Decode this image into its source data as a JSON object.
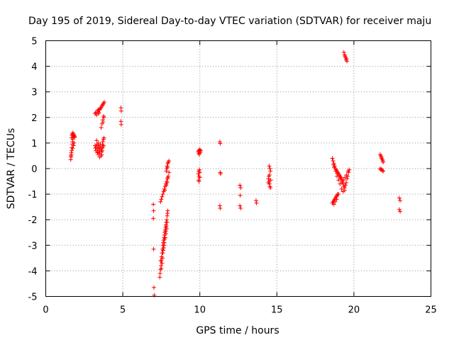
{
  "chart_data": {
    "type": "scatter",
    "title": "Day 195 of 2019, Sidereal Day-to-day VTEC variation (SDTVAR) for receiver maju",
    "xlabel": "GPS time / hours",
    "ylabel": "SDTVAR / TECUs",
    "xlim": [
      0,
      25
    ],
    "ylim": [
      -5,
      5
    ],
    "xticks": [
      "0",
      "5",
      "10",
      "15",
      "20",
      "25"
    ],
    "yticks": [
      "-5",
      "-4",
      "-3",
      "-2",
      "-1",
      "0",
      "1",
      "2",
      "3",
      "4",
      "5"
    ],
    "grid": true,
    "marker": "plus",
    "color": "#ff0000",
    "series": [
      {
        "name": "SDTVAR",
        "points": [
          [
            1.62,
            0.35
          ],
          [
            1.64,
            0.5
          ],
          [
            1.66,
            0.62
          ],
          [
            1.68,
            0.7
          ],
          [
            1.7,
            0.82
          ],
          [
            1.72,
            0.95
          ],
          [
            1.74,
            1.05
          ],
          [
            1.76,
            1.15
          ],
          [
            1.78,
            1.25
          ],
          [
            1.8,
            1.35
          ],
          [
            1.82,
            1.3
          ],
          [
            1.84,
            1.28
          ],
          [
            1.86,
            1.22
          ],
          [
            1.7,
            1.3
          ],
          [
            1.72,
            1.35
          ],
          [
            1.76,
            1.4
          ],
          [
            1.66,
            0.55
          ],
          [
            1.74,
            0.78
          ],
          [
            1.8,
            0.9
          ],
          [
            1.84,
            1.0
          ],
          [
            1.68,
            1.2
          ],
          [
            1.78,
            1.33
          ],
          [
            1.88,
            1.25
          ],
          [
            1.64,
            0.45
          ],
          [
            3.2,
            2.15
          ],
          [
            3.25,
            2.2
          ],
          [
            3.3,
            2.1
          ],
          [
            3.35,
            2.25
          ],
          [
            3.4,
            2.3
          ],
          [
            3.45,
            2.2
          ],
          [
            3.5,
            2.3
          ],
          [
            3.55,
            2.35
          ],
          [
            3.6,
            2.4
          ],
          [
            3.65,
            2.45
          ],
          [
            3.7,
            2.5
          ],
          [
            3.75,
            2.55
          ],
          [
            3.8,
            2.6
          ],
          [
            3.42,
            2.15
          ],
          [
            3.48,
            2.32
          ],
          [
            3.2,
            0.9
          ],
          [
            3.22,
            0.8
          ],
          [
            3.25,
            0.7
          ],
          [
            3.28,
            0.85
          ],
          [
            3.3,
            1.1
          ],
          [
            3.32,
            0.95
          ],
          [
            3.35,
            0.75
          ],
          [
            3.38,
            0.65
          ],
          [
            3.4,
            0.9
          ],
          [
            3.42,
            1.0
          ],
          [
            3.45,
            0.8
          ],
          [
            3.48,
            0.7
          ],
          [
            3.5,
            0.6
          ],
          [
            3.52,
            0.85
          ],
          [
            3.55,
            0.95
          ],
          [
            3.58,
            0.75
          ],
          [
            3.6,
            0.5
          ],
          [
            3.62,
            0.65
          ],
          [
            3.65,
            0.8
          ],
          [
            3.68,
            0.95
          ],
          [
            3.7,
            1.05
          ],
          [
            3.72,
            0.85
          ],
          [
            3.75,
            1.15
          ],
          [
            3.78,
            1.2
          ],
          [
            3.62,
            0.55
          ],
          [
            3.66,
            0.7
          ],
          [
            3.74,
            0.9
          ],
          [
            3.4,
            0.55
          ],
          [
            3.5,
            0.45
          ],
          [
            3.36,
            0.62
          ],
          [
            3.6,
            1.6
          ],
          [
            3.65,
            1.75
          ],
          [
            3.7,
            1.9
          ],
          [
            3.75,
            2.05
          ],
          [
            3.72,
            1.82
          ],
          [
            3.78,
            2.0
          ],
          [
            4.88,
            2.38
          ],
          [
            4.9,
            2.25
          ],
          [
            4.88,
            1.85
          ],
          [
            4.9,
            1.72
          ],
          [
            6.98,
            -1.4
          ],
          [
            7.0,
            -1.65
          ],
          [
            6.98,
            -1.95
          ],
          [
            7.0,
            -3.15
          ],
          [
            7.02,
            -4.65
          ],
          [
            7.04,
            -4.95
          ],
          [
            7.4,
            -4.25
          ],
          [
            7.42,
            -4.1
          ],
          [
            7.45,
            -3.95
          ],
          [
            7.48,
            -3.8
          ],
          [
            7.5,
            -3.6
          ],
          [
            7.52,
            -3.45
          ],
          [
            7.55,
            -3.3
          ],
          [
            7.58,
            -3.15
          ],
          [
            7.6,
            -3.0
          ],
          [
            7.62,
            -2.9
          ],
          [
            7.65,
            -2.8
          ],
          [
            7.68,
            -2.7
          ],
          [
            7.7,
            -2.6
          ],
          [
            7.72,
            -2.5
          ],
          [
            7.75,
            -2.4
          ],
          [
            7.78,
            -2.3
          ],
          [
            7.8,
            -2.2
          ],
          [
            7.82,
            -2.1
          ],
          [
            7.85,
            -2.0
          ],
          [
            7.88,
            -1.85
          ],
          [
            7.9,
            -1.75
          ],
          [
            7.92,
            -1.65
          ],
          [
            7.45,
            -3.6
          ],
          [
            7.55,
            -3.7
          ],
          [
            7.6,
            -3.3
          ],
          [
            7.65,
            -3.1
          ],
          [
            7.7,
            -2.9
          ],
          [
            7.75,
            -2.7
          ],
          [
            7.8,
            -2.55
          ],
          [
            7.85,
            -2.35
          ],
          [
            7.5,
            -3.9
          ],
          [
            7.58,
            -3.5
          ],
          [
            7.62,
            -3.2
          ],
          [
            7.68,
            -3.0
          ],
          [
            7.72,
            -2.75
          ],
          [
            7.78,
            -2.45
          ],
          [
            7.82,
            -2.25
          ],
          [
            7.88,
            -2.1
          ],
          [
            7.45,
            -1.3
          ],
          [
            7.5,
            -1.2
          ],
          [
            7.55,
            -1.1
          ],
          [
            7.6,
            -1.0
          ],
          [
            7.65,
            -0.9
          ],
          [
            7.7,
            -0.8
          ],
          [
            7.75,
            -0.7
          ],
          [
            7.8,
            -0.6
          ],
          [
            7.85,
            -0.5
          ],
          [
            7.9,
            -0.4
          ],
          [
            7.95,
            -0.3
          ],
          [
            8.0,
            -0.15
          ],
          [
            7.72,
            -0.85
          ],
          [
            7.82,
            -0.65
          ],
          [
            7.88,
            -0.55
          ],
          [
            7.92,
            -0.35
          ],
          [
            7.85,
            0.0
          ],
          [
            7.88,
            0.1
          ],
          [
            7.92,
            0.2
          ],
          [
            7.95,
            0.25
          ],
          [
            8.0,
            0.3
          ],
          [
            7.82,
            -0.1
          ],
          [
            7.9,
            0.05
          ],
          [
            9.9,
            0.65
          ],
          [
            9.92,
            0.7
          ],
          [
            9.95,
            0.6
          ],
          [
            9.98,
            0.72
          ],
          [
            10.0,
            0.68
          ],
          [
            10.02,
            0.62
          ],
          [
            10.05,
            0.7
          ],
          [
            9.95,
            0.55
          ],
          [
            10.0,
            0.75
          ],
          [
            9.9,
            -0.2
          ],
          [
            9.92,
            -0.1
          ],
          [
            9.95,
            -0.3
          ],
          [
            9.98,
            -0.05
          ],
          [
            10.0,
            -0.15
          ],
          [
            9.92,
            -0.45
          ],
          [
            9.95,
            -0.5
          ],
          [
            10.0,
            -0.35
          ],
          [
            11.3,
            1.05
          ],
          [
            11.32,
            0.98
          ],
          [
            11.32,
            -0.15
          ],
          [
            11.35,
            -0.2
          ],
          [
            11.3,
            -1.45
          ],
          [
            11.32,
            -1.55
          ],
          [
            12.6,
            -0.65
          ],
          [
            12.65,
            -0.75
          ],
          [
            12.62,
            -1.05
          ],
          [
            12.6,
            -1.45
          ],
          [
            12.65,
            -1.55
          ],
          [
            13.65,
            -1.25
          ],
          [
            13.68,
            -1.35
          ],
          [
            14.45,
            -0.4
          ],
          [
            14.5,
            -0.5
          ],
          [
            14.52,
            -0.6
          ],
          [
            14.55,
            -0.7
          ],
          [
            14.48,
            -0.3
          ],
          [
            14.5,
            0.1
          ],
          [
            14.55,
            0.0
          ],
          [
            14.58,
            -0.1
          ],
          [
            14.6,
            -0.45
          ],
          [
            14.45,
            -0.55
          ],
          [
            14.52,
            -0.25
          ],
          [
            14.58,
            -0.75
          ],
          [
            18.6,
            -1.35
          ],
          [
            18.65,
            -1.3
          ],
          [
            18.7,
            -1.25
          ],
          [
            18.75,
            -1.2
          ],
          [
            18.8,
            -1.15
          ],
          [
            18.85,
            -1.1
          ],
          [
            18.9,
            -1.05
          ],
          [
            18.95,
            -1.0
          ],
          [
            19.0,
            -1.0
          ],
          [
            18.7,
            -1.4
          ],
          [
            18.78,
            -1.3
          ],
          [
            18.88,
            -1.2
          ],
          [
            18.6,
            0.4
          ],
          [
            18.65,
            0.3
          ],
          [
            18.7,
            0.2
          ],
          [
            18.75,
            0.1
          ],
          [
            18.8,
            0.0
          ],
          [
            18.85,
            -0.05
          ],
          [
            18.9,
            -0.1
          ],
          [
            18.95,
            -0.15
          ],
          [
            19.0,
            -0.2
          ],
          [
            19.05,
            -0.25
          ],
          [
            19.1,
            -0.3
          ],
          [
            19.15,
            -0.35
          ],
          [
            19.2,
            -0.4
          ],
          [
            19.25,
            -0.5
          ],
          [
            19.3,
            -0.6
          ],
          [
            19.35,
            -0.7
          ],
          [
            19.4,
            -0.75
          ],
          [
            19.45,
            -0.65
          ],
          [
            19.5,
            -0.55
          ],
          [
            19.55,
            -0.4
          ],
          [
            19.6,
            -0.3
          ],
          [
            19.65,
            -0.15
          ],
          [
            19.7,
            -0.05
          ],
          [
            18.68,
            0.15
          ],
          [
            18.72,
            0.05
          ],
          [
            18.82,
            -0.1
          ],
          [
            18.92,
            -0.2
          ],
          [
            19.02,
            -0.3
          ],
          [
            19.12,
            -0.4
          ],
          [
            19.22,
            -0.55
          ],
          [
            19.32,
            -0.45
          ],
          [
            19.42,
            -0.35
          ],
          [
            19.52,
            -0.25
          ],
          [
            19.62,
            -0.1
          ],
          [
            19.2,
            -0.8
          ],
          [
            19.3,
            -0.9
          ],
          [
            19.4,
            -0.85
          ],
          [
            19.1,
            -0.6
          ],
          [
            19.0,
            -0.45
          ],
          [
            18.9,
            -0.3
          ],
          [
            19.35,
            4.55
          ],
          [
            19.4,
            4.45
          ],
          [
            19.45,
            4.35
          ],
          [
            19.5,
            4.25
          ],
          [
            19.55,
            4.2
          ],
          [
            19.42,
            4.4
          ],
          [
            19.52,
            4.3
          ],
          [
            21.7,
            0.55
          ],
          [
            21.75,
            0.5
          ],
          [
            21.8,
            0.4
          ],
          [
            21.85,
            0.35
          ],
          [
            21.9,
            0.25
          ],
          [
            21.7,
            0.0
          ],
          [
            21.75,
            -0.05
          ],
          [
            21.8,
            -0.02
          ],
          [
            21.85,
            -0.08
          ],
          [
            21.9,
            -0.1
          ],
          [
            21.78,
            0.45
          ],
          [
            21.88,
            0.3
          ],
          [
            22.95,
            -1.15
          ],
          [
            23.0,
            -1.25
          ],
          [
            22.95,
            -1.6
          ],
          [
            23.0,
            -1.68
          ]
        ]
      }
    ]
  }
}
